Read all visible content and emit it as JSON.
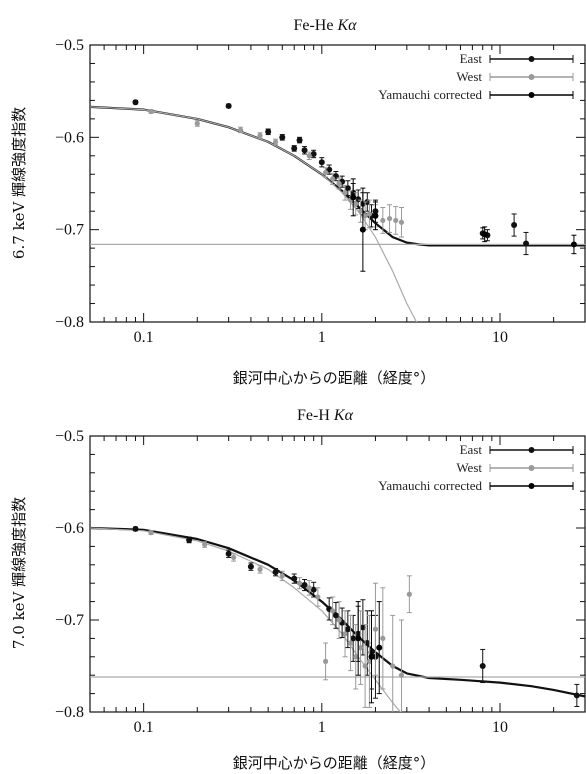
{
  "chart_data": [
    {
      "type": "scatter",
      "title_prefix": "Fe-He ",
      "title_italic": "Kα",
      "xlabel": "銀河中心からの距離（経度°）",
      "ylabel": "6.7 keV 輝線強度指数",
      "xscale": "log",
      "xlim": [
        0.05,
        30
      ],
      "ylim": [
        -0.8,
        -0.5
      ],
      "x_ticks": [
        {
          "value": 0.1,
          "label": "0.1"
        },
        {
          "value": 1,
          "label": "1"
        },
        {
          "value": 10,
          "label": "10"
        }
      ],
      "y_ticks": [
        {
          "value": -0.5,
          "label": "−0.5"
        },
        {
          "value": -0.6,
          "label": "−0.6"
        },
        {
          "value": -0.7,
          "label": "−0.7"
        },
        {
          "value": -0.8,
          "label": "−0.8"
        }
      ],
      "legend_position": "top-right",
      "series": [
        {
          "name": "East",
          "color": "#111111",
          "x": [
            0.09,
            0.3,
            0.5,
            0.6,
            0.7,
            0.75,
            0.8,
            0.9,
            1.0,
            1.1,
            1.2,
            1.3,
            1.4,
            1.5,
            1.6,
            1.7,
            1.8,
            1.9,
            2.0,
            8.0,
            8.5,
            12.0,
            14.0
          ],
          "y": [
            -0.562,
            -0.566,
            -0.594,
            -0.6,
            -0.612,
            -0.603,
            -0.614,
            -0.618,
            -0.627,
            -0.635,
            -0.642,
            -0.648,
            -0.655,
            -0.66,
            -0.667,
            -0.672,
            -0.67,
            -0.685,
            -0.68,
            -0.704,
            -0.706,
            -0.695,
            -0.715
          ],
          "yerr": [
            0.002,
            0.002,
            0.003,
            0.003,
            0.003,
            0.003,
            0.004,
            0.004,
            0.005,
            0.005,
            0.005,
            0.006,
            0.008,
            0.01,
            0.01,
            0.012,
            0.01,
            0.012,
            0.012,
            0.006,
            0.006,
            0.012,
            0.012
          ]
        },
        {
          "name": "West",
          "color": "#9a9a9a",
          "x": [
            0.11,
            0.2,
            0.35,
            0.45,
            0.55,
            0.85,
            1.05,
            1.15,
            1.25,
            1.35,
            1.45,
            1.55,
            1.65,
            1.75,
            1.85,
            2.0,
            2.2,
            2.4,
            2.6,
            2.8
          ],
          "y": [
            -0.572,
            -0.585,
            -0.592,
            -0.598,
            -0.605,
            -0.62,
            -0.638,
            -0.645,
            -0.65,
            -0.66,
            -0.668,
            -0.672,
            -0.68,
            -0.685,
            -0.683,
            -0.685,
            -0.69,
            -0.688,
            -0.69,
            -0.692
          ],
          "yerr": [
            0.002,
            0.003,
            0.003,
            0.003,
            0.003,
            0.004,
            0.005,
            0.006,
            0.006,
            0.008,
            0.01,
            0.012,
            0.012,
            0.015,
            0.015,
            0.012,
            0.014,
            0.015,
            0.015,
            0.016
          ]
        },
        {
          "name": "Yamauchi corrected",
          "color": "#000000",
          "x": [
            1.5,
            1.7,
            2.0,
            8.2,
            26.0
          ],
          "y": [
            -0.665,
            -0.7,
            -0.685,
            -0.705,
            -0.716
          ],
          "yerr": [
            0.02,
            0.045,
            0.015,
            0.008,
            0.01
          ]
        }
      ],
      "model_curves": [
        {
          "kind": "total",
          "color": "#111111",
          "width": 2.2,
          "x": [
            0.05,
            0.1,
            0.2,
            0.3,
            0.5,
            0.7,
            1.0,
            1.3,
            1.6,
            2.0,
            2.5,
            3.0,
            3.5,
            4.0,
            5.0,
            7.0,
            10.0,
            15.0,
            20.0,
            30.0
          ],
          "y": [
            -0.567,
            -0.57,
            -0.58,
            -0.589,
            -0.605,
            -0.62,
            -0.64,
            -0.658,
            -0.675,
            -0.693,
            -0.708,
            -0.714,
            -0.716,
            -0.717,
            -0.717,
            -0.717,
            -0.717,
            -0.717,
            -0.717,
            -0.717
          ]
        },
        {
          "kind": "component",
          "color": "#aaaaaa",
          "width": 1.2,
          "x": [
            0.05,
            0.1,
            0.2,
            0.3,
            0.5,
            0.7,
            1.0,
            1.3,
            1.6,
            2.0,
            2.5,
            3.0,
            3.4,
            3.8
          ],
          "y": [
            -0.567,
            -0.57,
            -0.58,
            -0.589,
            -0.605,
            -0.62,
            -0.64,
            -0.66,
            -0.68,
            -0.708,
            -0.745,
            -0.78,
            -0.8,
            -0.82
          ]
        },
        {
          "kind": "baseline",
          "color": "#aaaaaa",
          "width": 1.2,
          "x": [
            0.05,
            30
          ],
          "y": [
            -0.716,
            -0.716
          ]
        }
      ]
    },
    {
      "type": "scatter",
      "title_prefix": "Fe-H ",
      "title_italic": "Kα",
      "xlabel": "銀河中心からの距離（経度°）",
      "ylabel": "7.0 keV 輝線強度指数",
      "xscale": "log",
      "xlim": [
        0.05,
        30
      ],
      "ylim": [
        -0.8,
        -0.5
      ],
      "x_ticks": [
        {
          "value": 0.1,
          "label": "0.1"
        },
        {
          "value": 1,
          "label": "1"
        },
        {
          "value": 10,
          "label": "10"
        }
      ],
      "y_ticks": [
        {
          "value": -0.5,
          "label": "−0.5"
        },
        {
          "value": -0.6,
          "label": "−0.6"
        },
        {
          "value": -0.7,
          "label": "−0.7"
        },
        {
          "value": -0.8,
          "label": "−0.8"
        }
      ],
      "legend_position": "top-right",
      "series": [
        {
          "name": "East",
          "color": "#111111",
          "x": [
            0.09,
            0.18,
            0.3,
            0.4,
            0.55,
            0.7,
            0.8,
            0.9,
            1.1,
            1.2,
            1.3,
            1.4,
            1.5,
            1.6,
            1.7,
            1.8,
            1.9,
            2.0,
            8.0,
            27.0
          ],
          "y": [
            -0.601,
            -0.613,
            -0.628,
            -0.642,
            -0.648,
            -0.655,
            -0.662,
            -0.667,
            -0.688,
            -0.695,
            -0.703,
            -0.71,
            -0.72,
            -0.715,
            -0.708,
            -0.725,
            -0.735,
            -0.74,
            -0.75,
            -0.782
          ],
          "yerr": [
            0.002,
            0.003,
            0.004,
            0.004,
            0.004,
            0.005,
            0.006,
            0.008,
            0.012,
            0.014,
            0.016,
            0.02,
            0.025,
            0.03,
            0.03,
            0.035,
            0.04,
            0.045,
            0.018,
            0.012
          ]
        },
        {
          "name": "West",
          "color": "#9a9a9a",
          "x": [
            0.11,
            0.22,
            0.32,
            0.45,
            0.6,
            0.75,
            0.85,
            0.95,
            1.05,
            1.15,
            1.25,
            1.35,
            1.45,
            1.55,
            1.65,
            1.75,
            1.85,
            2.0,
            2.2,
            2.5,
            2.8,
            3.1
          ],
          "y": [
            -0.605,
            -0.618,
            -0.632,
            -0.645,
            -0.652,
            -0.66,
            -0.665,
            -0.675,
            -0.745,
            -0.69,
            -0.7,
            -0.715,
            -0.725,
            -0.74,
            -0.73,
            -0.75,
            -0.745,
            -0.71,
            -0.72,
            -0.75,
            -0.76,
            -0.672
          ],
          "yerr": [
            0.002,
            0.003,
            0.004,
            0.004,
            0.005,
            0.006,
            0.008,
            0.01,
            0.02,
            0.015,
            0.02,
            0.025,
            0.03,
            0.035,
            0.04,
            0.045,
            0.05,
            0.05,
            0.055,
            0.055,
            0.06,
            0.02
          ]
        },
        {
          "name": "Yamauchi corrected",
          "color": "#000000",
          "x": [
            1.6,
            1.9,
            2.1
          ],
          "y": [
            -0.72,
            -0.74,
            -0.73
          ],
          "yerr": [
            0.04,
            0.05,
            0.05
          ]
        }
      ],
      "model_curves": [
        {
          "kind": "total",
          "color": "#111111",
          "width": 2.2,
          "x": [
            0.05,
            0.1,
            0.2,
            0.3,
            0.5,
            0.7,
            1.0,
            1.3,
            1.6,
            2.0,
            2.5,
            3.0,
            4.0,
            6.0,
            10.0,
            15.0,
            20.0,
            30.0
          ],
          "y": [
            -0.6,
            -0.602,
            -0.612,
            -0.622,
            -0.64,
            -0.657,
            -0.68,
            -0.7,
            -0.718,
            -0.735,
            -0.75,
            -0.758,
            -0.763,
            -0.765,
            -0.768,
            -0.772,
            -0.776,
            -0.783
          ]
        },
        {
          "kind": "component",
          "color": "#aaaaaa",
          "width": 1.2,
          "x": [
            0.05,
            0.1,
            0.2,
            0.3,
            0.5,
            0.7,
            1.0,
            1.3,
            1.6,
            2.0,
            2.5,
            2.9
          ],
          "y": [
            -0.6,
            -0.603,
            -0.614,
            -0.625,
            -0.645,
            -0.665,
            -0.69,
            -0.715,
            -0.74,
            -0.765,
            -0.79,
            -0.805
          ]
        },
        {
          "kind": "baseline",
          "color": "#aaaaaa",
          "width": 1.2,
          "x": [
            0.05,
            30
          ],
          "y": [
            -0.762,
            -0.762
          ]
        }
      ]
    }
  ]
}
